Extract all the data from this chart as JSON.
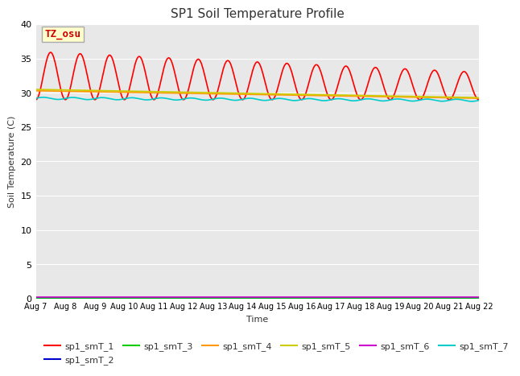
{
  "title": "SP1 Soil Temperature Profile",
  "xlabel": "Time",
  "ylabel": "Soil Temperature (C)",
  "ylim": [
    0,
    40
  ],
  "background_color": "#e8e8e8",
  "annotation_text": "TZ_osu",
  "annotation_bg": "#ffffcc",
  "annotation_border": "#aaaaaa",
  "series_order": [
    "sp1_smT_1",
    "sp1_smT_2",
    "sp1_smT_3",
    "sp1_smT_4",
    "sp1_smT_5",
    "sp1_smT_6",
    "sp1_smT_7"
  ],
  "series": {
    "sp1_smT_1": {
      "color": "#ff0000",
      "lw": 1.2
    },
    "sp1_smT_2": {
      "color": "#0000cc",
      "lw": 1.2
    },
    "sp1_smT_3": {
      "color": "#00cc00",
      "lw": 1.2
    },
    "sp1_smT_4": {
      "color": "#ff9900",
      "lw": 1.2
    },
    "sp1_smT_5": {
      "color": "#cccc00",
      "lw": 1.2
    },
    "sp1_smT_6": {
      "color": "#cc00cc",
      "lw": 1.2
    },
    "sp1_smT_7": {
      "color": "#00cccc",
      "lw": 1.2
    }
  },
  "tick_labels": [
    "Aug 7",
    "Aug 8",
    "Aug 9",
    "Aug 10",
    "Aug 11",
    "Aug 12",
    "Aug 13",
    "Aug 14",
    "Aug 15",
    "Aug 16",
    "Aug 17",
    "Aug 18",
    "Aug 19",
    "Aug 20",
    "Aug 21",
    "Aug 22"
  ],
  "yticks": [
    0,
    5,
    10,
    15,
    20,
    25,
    30,
    35,
    40
  ],
  "n_days": 15,
  "figsize": [
    6.4,
    4.8
  ],
  "dpi": 100
}
